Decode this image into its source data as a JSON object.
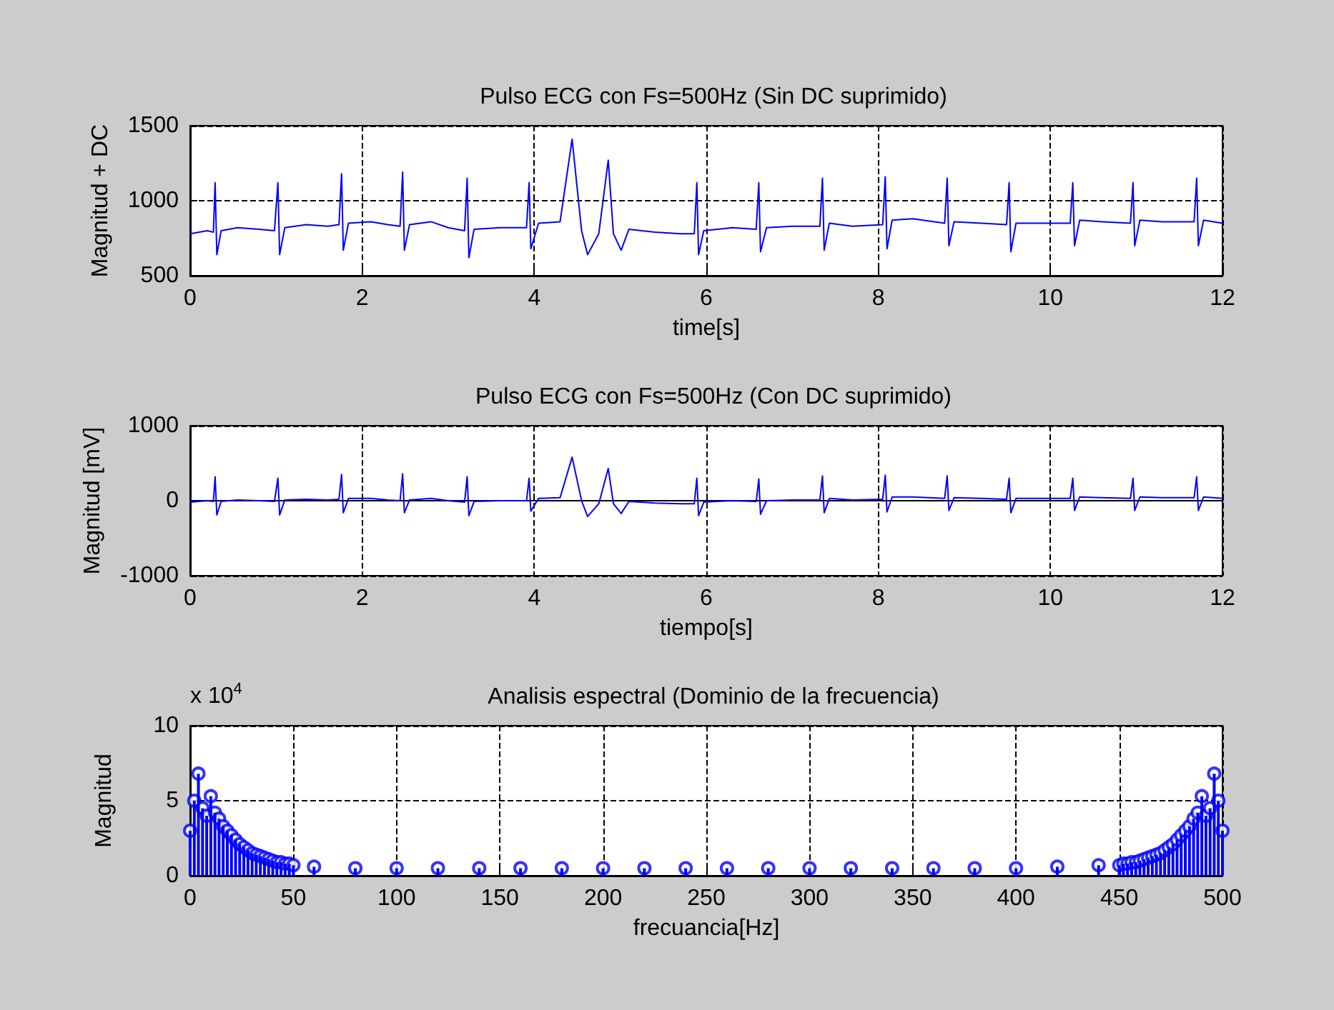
{
  "chart_data": [
    {
      "type": "line",
      "title": "Pulso ECG con Fs=500Hz (Sin DC suprimido)",
      "xlabel": "time[s]",
      "ylabel": "Magnitud + DC",
      "xlim": [
        0,
        12
      ],
      "xticks": [
        0,
        2,
        4,
        6,
        8,
        10,
        12
      ],
      "ylim": [
        500,
        1500
      ],
      "yticks": [
        500,
        1000,
        1500
      ],
      "grid": true,
      "marker": "none",
      "line_style": "solid",
      "x": [
        0,
        0.2,
        0.27,
        0.29,
        0.31,
        0.36,
        0.55,
        0.8,
        0.98,
        1.02,
        1.04,
        1.1,
        1.35,
        1.6,
        1.73,
        1.76,
        1.78,
        1.84,
        2.1,
        2.3,
        2.44,
        2.47,
        2.49,
        2.55,
        2.8,
        3.0,
        3.19,
        3.22,
        3.24,
        3.3,
        3.6,
        3.85,
        3.91,
        3.94,
        3.96,
        4.05,
        4.3,
        4.44,
        4.55,
        4.62,
        4.75,
        4.86,
        4.92,
        5.01,
        5.1,
        5.4,
        5.7,
        5.86,
        5.89,
        5.91,
        5.97,
        6.3,
        6.58,
        6.61,
        6.63,
        6.7,
        7.0,
        7.32,
        7.35,
        7.37,
        7.43,
        7.7,
        8.05,
        8.08,
        8.1,
        8.16,
        8.4,
        8.77,
        8.8,
        8.82,
        8.88,
        9.2,
        9.49,
        9.52,
        9.54,
        9.6,
        9.9,
        10.23,
        10.26,
        10.28,
        10.34,
        10.6,
        10.93,
        10.96,
        10.98,
        11.04,
        11.3,
        11.67,
        11.7,
        11.72,
        11.78,
        12
      ],
      "series": [
        {
          "color": "#0000ff",
          "values": [
            780,
            800,
            790,
            1120,
            640,
            800,
            820,
            810,
            800,
            1120,
            640,
            820,
            840,
            830,
            840,
            1180,
            670,
            850,
            860,
            840,
            830,
            1190,
            670,
            840,
            860,
            820,
            800,
            1150,
            620,
            810,
            820,
            820,
            820,
            1120,
            680,
            850,
            860,
            1410,
            800,
            640,
            780,
            1270,
            780,
            670,
            810,
            790,
            780,
            780,
            1120,
            640,
            800,
            820,
            810,
            1120,
            660,
            820,
            830,
            830,
            1150,
            670,
            850,
            830,
            840,
            1160,
            680,
            870,
            880,
            850,
            1150,
            700,
            860,
            850,
            840,
            1120,
            660,
            850,
            850,
            850,
            1120,
            700,
            870,
            860,
            850,
            1120,
            700,
            870,
            860,
            860,
            1150,
            700,
            870,
            850
          ]
        }
      ]
    },
    {
      "type": "line",
      "title": "Pulso ECG con Fs=500Hz (Con DC suprimido)",
      "xlabel": "tiempo[s]",
      "ylabel": "Magnitud [mV]",
      "xlim": [
        0,
        12
      ],
      "xticks": [
        0,
        2,
        4,
        6,
        8,
        10,
        12
      ],
      "ylim": [
        -1000,
        1000
      ],
      "yticks": [
        -1000,
        0,
        1000
      ],
      "grid": true,
      "marker": "none",
      "line_style": "solid",
      "x": [
        0,
        0.2,
        0.27,
        0.29,
        0.31,
        0.36,
        0.55,
        0.8,
        0.98,
        1.02,
        1.04,
        1.1,
        1.35,
        1.6,
        1.73,
        1.76,
        1.78,
        1.84,
        2.1,
        2.3,
        2.44,
        2.47,
        2.49,
        2.55,
        2.8,
        3.0,
        3.19,
        3.22,
        3.24,
        3.3,
        3.6,
        3.85,
        3.91,
        3.94,
        3.96,
        4.05,
        4.3,
        4.44,
        4.55,
        4.62,
        4.75,
        4.86,
        4.92,
        5.01,
        5.1,
        5.4,
        5.7,
        5.86,
        5.89,
        5.91,
        5.97,
        6.3,
        6.58,
        6.61,
        6.63,
        6.7,
        7.0,
        7.32,
        7.35,
        7.37,
        7.43,
        7.7,
        8.05,
        8.08,
        8.1,
        8.16,
        8.4,
        8.77,
        8.8,
        8.82,
        8.88,
        9.2,
        9.49,
        9.52,
        9.54,
        9.6,
        9.9,
        10.23,
        10.26,
        10.28,
        10.34,
        10.6,
        10.93,
        10.96,
        10.98,
        11.04,
        11.3,
        11.67,
        11.7,
        11.72,
        11.78,
        12
      ],
      "series": [
        {
          "color": "#0000ff",
          "values": [
            -20,
            0,
            -10,
            320,
            -190,
            -10,
            10,
            0,
            -10,
            300,
            -190,
            10,
            20,
            10,
            20,
            350,
            -160,
            30,
            30,
            10,
            0,
            360,
            -160,
            10,
            30,
            0,
            -20,
            320,
            -200,
            -10,
            0,
            0,
            0,
            300,
            -140,
            30,
            40,
            580,
            0,
            -210,
            -40,
            430,
            -40,
            -170,
            -10,
            -30,
            -40,
            -40,
            300,
            -200,
            -20,
            0,
            -10,
            290,
            -180,
            0,
            10,
            10,
            330,
            -160,
            30,
            10,
            20,
            340,
            -150,
            50,
            50,
            30,
            330,
            -130,
            40,
            30,
            20,
            300,
            -160,
            30,
            30,
            30,
            300,
            -130,
            50,
            40,
            30,
            300,
            -130,
            50,
            40,
            40,
            320,
            -130,
            50,
            30
          ]
        }
      ]
    },
    {
      "type": "lollipop",
      "title": "Analisis espectral (Dominio de la frecuencia)",
      "xlabel": "frecuancia[Hz]",
      "ylabel": "Magnitud",
      "annotations": [
        "x 10$^{4}$"
      ],
      "xlim": [
        0,
        500
      ],
      "xticks": [
        0,
        50,
        100,
        150,
        200,
        250,
        300,
        350,
        400,
        450,
        500
      ],
      "ylim": [
        0,
        10
      ],
      "yticks": [
        0,
        5,
        10
      ],
      "grid": true,
      "marker": "circle",
      "x": [
        0,
        2,
        4,
        6,
        8,
        10,
        12,
        14,
        16,
        18,
        20,
        22,
        24,
        26,
        28,
        30,
        32,
        34,
        36,
        38,
        40,
        42,
        44,
        46,
        48,
        50,
        60,
        80,
        100,
        120,
        140,
        160,
        180,
        200,
        220,
        240,
        260,
        280,
        300,
        320,
        340,
        360,
        380,
        400,
        420,
        440,
        450,
        452,
        454,
        456,
        458,
        460,
        462,
        464,
        466,
        468,
        470,
        472,
        474,
        476,
        478,
        480,
        482,
        484,
        486,
        488,
        490,
        492,
        494,
        496,
        498,
        500
      ],
      "series": [
        {
          "color": "#0000ff",
          "values": [
            3,
            5,
            6.8,
            4.5,
            4,
            5.3,
            4.2,
            3.8,
            3.3,
            3,
            2.7,
            2.4,
            2.1,
            1.9,
            1.7,
            1.5,
            1.4,
            1.3,
            1.2,
            1.1,
            1,
            0.9,
            0.9,
            0.8,
            0.8,
            0.7,
            0.6,
            0.5,
            0.5,
            0.5,
            0.5,
            0.5,
            0.5,
            0.5,
            0.5,
            0.5,
            0.5,
            0.5,
            0.5,
            0.5,
            0.5,
            0.5,
            0.5,
            0.5,
            0.6,
            0.7,
            0.7,
            0.8,
            0.8,
            0.9,
            0.9,
            1,
            1.1,
            1.2,
            1.3,
            1.4,
            1.5,
            1.7,
            1.9,
            2.1,
            2.4,
            2.7,
            3,
            3.3,
            3.8,
            4.2,
            5.3,
            4,
            4.5,
            6.8,
            5,
            3
          ]
        }
      ]
    }
  ]
}
